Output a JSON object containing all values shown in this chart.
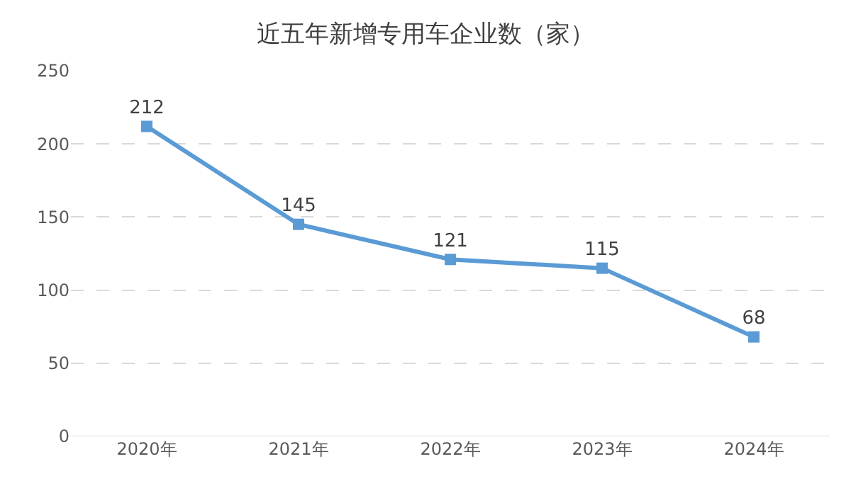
{
  "chart_data": {
    "type": "line",
    "title": "近五年新增专用车企业数（家）",
    "categories": [
      "2020年",
      "2021年",
      "2022年",
      "2023年",
      "2024年"
    ],
    "series": [
      {
        "color": "#5b9bd5",
        "values": [
          212,
          145,
          121,
          115,
          68
        ]
      }
    ],
    "ylim": [
      0,
      250
    ],
    "yticks": [
      0,
      50,
      100,
      150,
      200,
      250
    ],
    "grid": "y",
    "marker": "square",
    "line_style": "solid",
    "data_labels": true,
    "legend": false
  }
}
